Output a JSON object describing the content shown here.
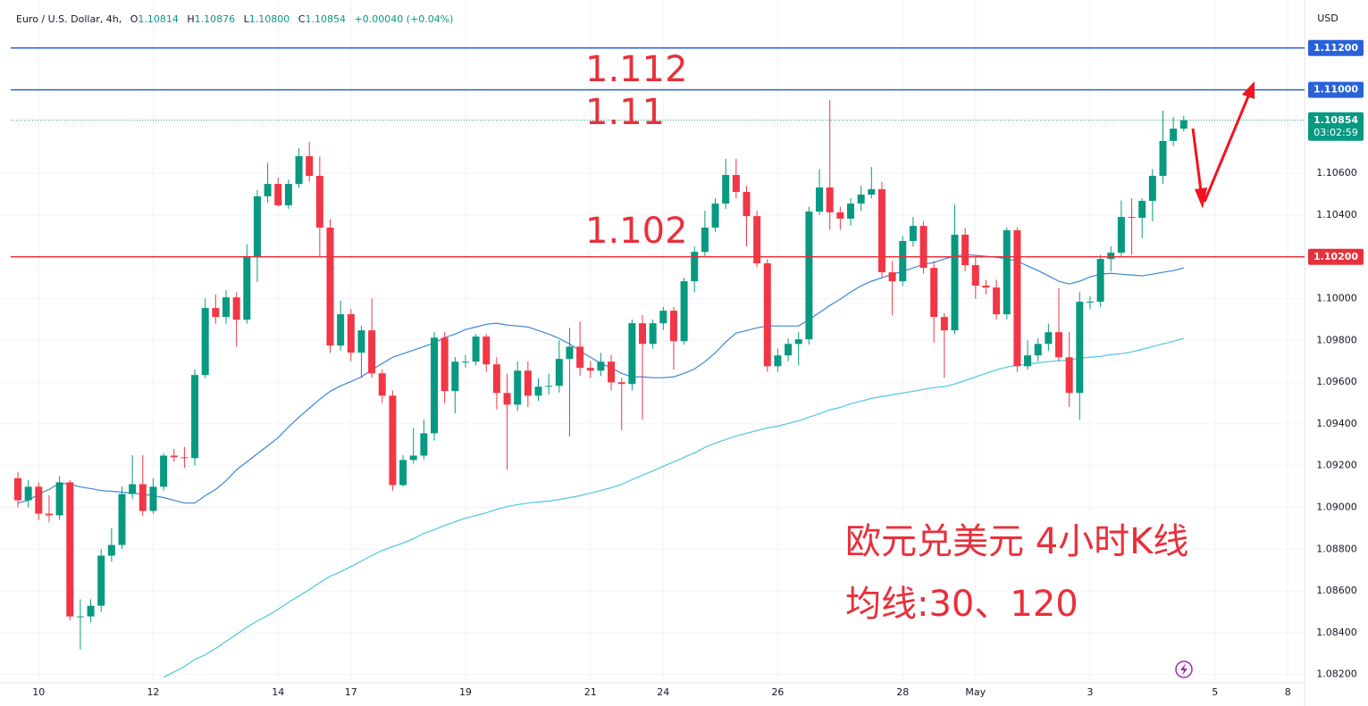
{
  "chart_data": {
    "type": "candlestick",
    "title": "Euro / U.S. Dollar, 4h,",
    "ohlc_header": {
      "open_key": "O",
      "open": "1.10814",
      "high_key": "H",
      "high": "1.10876",
      "low_key": "L",
      "low": "1.10800",
      "close_key": "C",
      "close": "1.10854",
      "change": "+0.00040 (+0.04%)"
    },
    "y_axis_label": "USD",
    "annotations": {
      "level_top": "1.112",
      "level_mid": "1.11",
      "level_low": "1.102",
      "caption_1": "欧元兑美元 4小时K线",
      "caption_2": "均线:30、120"
    },
    "up_color": "#089981",
    "down_color": "#f23645",
    "ylim": [
      1.0816,
      1.1143
    ],
    "yticks": [
      {
        "value": 1.082,
        "label": "1.08200"
      },
      {
        "value": 1.084,
        "label": "1.08400"
      },
      {
        "value": 1.086,
        "label": "1.08600"
      },
      {
        "value": 1.088,
        "label": "1.08800"
      },
      {
        "value": 1.09,
        "label": "1.09000"
      },
      {
        "value": 1.092,
        "label": "1.09200"
      },
      {
        "value": 1.094,
        "label": "1.09400"
      },
      {
        "value": 1.096,
        "label": "1.09600"
      },
      {
        "value": 1.098,
        "label": "1.09800"
      },
      {
        "value": 1.1,
        "label": "1.10000"
      },
      {
        "value": 1.104,
        "label": "1.10400"
      },
      {
        "value": 1.106,
        "label": "1.10600"
      }
    ],
    "grid": true,
    "hlines": [
      {
        "value": 1.112,
        "label": "1.11200",
        "color": "#2962d8"
      },
      {
        "value": 1.11,
        "label": "1.11000",
        "color": "#2962d8"
      },
      {
        "value": 1.102,
        "label": "1.10200",
        "color": "#e8303b"
      }
    ],
    "last_price": {
      "value": 1.10854,
      "label": "1.10854",
      "countdown": "03:02:59",
      "color": "#089981"
    },
    "categories": [
      null,
      null,
      "10",
      null,
      null,
      null,
      null,
      null,
      null,
      null,
      null,
      null,
      null,
      "12",
      null,
      null,
      null,
      null,
      null,
      null,
      null,
      null,
      null,
      null,
      null,
      "14",
      null,
      null,
      null,
      null,
      null,
      null,
      "17",
      null,
      null,
      null,
      null,
      null,
      null,
      null,
      null,
      null,
      null,
      "19",
      null,
      null,
      null,
      null,
      null,
      null,
      null,
      null,
      null,
      null,
      null,
      "21",
      null,
      null,
      null,
      null,
      null,
      null,
      "24",
      null,
      null,
      null,
      null,
      null,
      null,
      null,
      null,
      null,
      null,
      "26",
      null,
      null,
      null,
      null,
      null,
      null,
      null,
      null,
      null,
      null,
      null,
      "28",
      null,
      null,
      null,
      null,
      null,
      null,
      "May",
      null,
      null,
      null,
      null,
      null,
      null,
      null,
      null,
      null,
      null,
      "3",
      null,
      null,
      null,
      null,
      null,
      null,
      null,
      null,
      null,
      null,
      null,
      "5",
      null,
      null,
      null,
      null,
      null,
      null,
      "8"
    ],
    "open": [
      1.0914,
      1.09034,
      1.09099,
      1.0897,
      1.08962,
      1.0912,
      1.08478,
      1.08478,
      1.08529,
      1.08769,
      1.0882,
      1.09064,
      1.09111,
      1.08983,
      1.09099,
      1.09248,
      1.0924,
      1.09236,
      1.09634,
      1.09955,
      1.09912,
      1.10006,
      1.09899,
      1.10199,
      1.1049,
      1.10549,
      1.10447,
      1.10549,
      1.10682,
      1.10588,
      1.1034,
      1.09775,
      1.09925,
      1.09741,
      1.09848,
      1.09642,
      1.09535,
      1.09107,
      1.09227,
      1.09248,
      1.09355,
      1.09813,
      1.09557,
      1.09698,
      1.09698,
      1.09818,
      1.09685,
      1.09548,
      1.09492,
      1.09655,
      1.09535,
      1.09578,
      1.09582,
      1.09711,
      1.0977,
      1.09668,
      1.09655,
      1.09698,
      1.09599,
      1.09591,
      1.09882,
      1.09783,
      1.09882,
      1.09942,
      1.09796,
      1.10083,
      1.10224,
      1.1034,
      1.10455,
      1.10592,
      1.10511,
      1.10395,
      1.10169,
      1.09676,
      1.09728,
      1.09783,
      1.09805,
      1.10417,
      1.10532,
      1.10413,
      1.10383,
      1.10455,
      1.10498,
      1.10524,
      1.10126,
      1.10083,
      1.10276,
      1.10348,
      1.10147,
      1.09912,
      1.09848,
      1.10306,
      1.1016,
      1.10062,
      1.10053,
      1.09925,
      1.10327,
      1.09676,
      1.09728,
      1.09783,
      1.09839,
      1.09719,
      1.09548,
      1.09985,
      1.09985,
      1.1019,
      1.1022,
      1.10391,
      1.10387,
      1.10468,
      1.10588,
      1.10755,
      1.10814,
      null,
      null,
      null,
      null,
      null,
      null,
      null,
      null,
      null,
      null
    ],
    "high": [
      1.0917,
      1.0913,
      1.0912,
      1.0906,
      1.0915,
      1.0913,
      1.0856,
      1.0856,
      1.088,
      1.089,
      1.091,
      1.0925,
      1.0925,
      1.0914,
      1.0926,
      1.0928,
      1.0929,
      1.0966,
      1.1,
      1.1002,
      1.1004,
      1.1003,
      1.1026,
      1.1052,
      1.1065,
      1.1058,
      1.1057,
      1.1072,
      1.1075,
      1.1068,
      1.1038,
      1.0999,
      1.0995,
      1.0987,
      1.1,
      1.0966,
      1.0956,
      1.0925,
      1.0938,
      1.0942,
      1.0984,
      1.0984,
      1.0972,
      1.0973,
      1.0983,
      1.0983,
      1.0972,
      1.0964,
      1.097,
      1.097,
      1.0962,
      1.0964,
      1.098,
      1.0986,
      1.0989,
      1.097,
      1.0974,
      1.0973,
      1.0962,
      1.099,
      1.0992,
      1.099,
      1.0996,
      1.0996,
      1.101,
      1.1025,
      1.1042,
      1.1048,
      1.1067,
      1.1067,
      1.1054,
      1.1042,
      1.1019,
      1.0976,
      1.0981,
      1.0984,
      1.1044,
      1.1062,
      1.1095,
      1.1044,
      1.1048,
      1.1054,
      1.1063,
      1.1056,
      1.1018,
      1.103,
      1.1039,
      1.1037,
      1.1018,
      1.0993,
      1.1045,
      1.1034,
      1.102,
      1.1009,
      1.1009,
      1.1034,
      1.1034,
      1.098,
      1.0981,
      1.0988,
      1.1005,
      1.0984,
      1.1003,
      1.1001,
      1.1021,
      1.1025,
      1.1047,
      1.1048,
      1.1048,
      1.1062,
      1.109,
      1.1087,
      1.10876,
      null,
      null,
      null,
      null,
      null,
      null,
      null,
      null,
      null,
      null
    ],
    "low": [
      1.09,
      1.09,
      1.0894,
      1.0893,
      1.0894,
      1.0846,
      1.0832,
      1.0845,
      1.085,
      1.0874,
      1.088,
      1.0904,
      1.0896,
      1.0897,
      1.0908,
      1.0922,
      1.0919,
      1.092,
      1.0962,
      1.0988,
      1.0988,
      1.0977,
      1.0988,
      1.1008,
      1.1046,
      1.1044,
      1.1043,
      1.1053,
      1.1056,
      1.102,
      1.0974,
      1.0975,
      1.097,
      1.0962,
      1.0962,
      1.095,
      1.0908,
      1.091,
      1.0921,
      1.0923,
      1.0932,
      1.095,
      1.0945,
      1.0967,
      1.0968,
      1.0965,
      1.0947,
      1.0918,
      1.0946,
      1.0948,
      1.0951,
      1.0954,
      1.0955,
      1.0934,
      1.0963,
      1.0962,
      1.0963,
      1.0956,
      1.0937,
      1.0956,
      1.0942,
      1.0976,
      1.0985,
      1.0966,
      1.0978,
      1.1003,
      1.102,
      1.1032,
      1.1043,
      1.1048,
      1.1025,
      1.1015,
      1.0965,
      1.0965,
      1.097,
      1.0968,
      1.0978,
      1.104,
      1.1033,
      1.1033,
      1.1035,
      1.1042,
      1.1048,
      1.101,
      1.0992,
      1.1006,
      1.1025,
      1.1012,
      1.0979,
      1.0962,
      1.0983,
      1.1013,
      1.1,
      1.1002,
      1.099,
      1.099,
      1.0965,
      1.0966,
      1.097,
      1.0975,
      1.097,
      1.0948,
      1.0942,
      1.0995,
      1.0996,
      1.1013,
      1.102,
      1.1021,
      1.1029,
      1.1037,
      1.1055,
      1.1073,
      1.108,
      null,
      null,
      null,
      null,
      null,
      null,
      null,
      null,
      null,
      null
    ],
    "close": [
      1.09034,
      1.09099,
      1.0897,
      1.08962,
      1.0912,
      1.08478,
      1.08478,
      1.08529,
      1.08769,
      1.0882,
      1.09064,
      1.09111,
      1.08983,
      1.09099,
      1.09248,
      1.0924,
      1.09236,
      1.09634,
      1.09955,
      1.09912,
      1.10006,
      1.09899,
      1.10199,
      1.1049,
      1.10549,
      1.10447,
      1.10549,
      1.10682,
      1.10588,
      1.1034,
      1.09775,
      1.09925,
      1.09741,
      1.09848,
      1.09642,
      1.09535,
      1.09107,
      1.09227,
      1.09248,
      1.09355,
      1.09813,
      1.09557,
      1.09698,
      1.09698,
      1.09818,
      1.09685,
      1.09548,
      1.09492,
      1.09655,
      1.09535,
      1.09578,
      1.09582,
      1.09711,
      1.0977,
      1.09668,
      1.09655,
      1.09698,
      1.09599,
      1.09591,
      1.09882,
      1.09783,
      1.09882,
      1.09942,
      1.09796,
      1.10083,
      1.10224,
      1.1034,
      1.10455,
      1.10592,
      1.10511,
      1.10395,
      1.10169,
      1.09676,
      1.09728,
      1.09783,
      1.09805,
      1.10417,
      1.10532,
      1.10413,
      1.10383,
      1.10455,
      1.10498,
      1.10524,
      1.10126,
      1.10083,
      1.10276,
      1.10348,
      1.10147,
      1.09912,
      1.09848,
      1.10306,
      1.1016,
      1.10062,
      1.10053,
      1.09925,
      1.10327,
      1.09676,
      1.09728,
      1.09783,
      1.09839,
      1.09719,
      1.09548,
      1.09985,
      1.09985,
      1.1019,
      1.1022,
      1.10391,
      1.10387,
      1.10468,
      1.10588,
      1.10755,
      1.10814,
      1.10854,
      null,
      null,
      null,
      null,
      null,
      null,
      null,
      null,
      null,
      null
    ],
    "series": [
      {
        "color": "#3d86d4",
        "values": [
          1.09021,
          1.09034,
          1.09064,
          1.09086,
          1.09116,
          1.09111,
          1.09098,
          1.0909,
          1.09081,
          1.09077,
          1.09073,
          1.09068,
          1.09064,
          1.09056,
          1.09047,
          1.09034,
          1.09021,
          1.09021,
          1.09056,
          1.09086,
          1.09128,
          1.0918,
          1.09218,
          1.09257,
          1.09295,
          1.09334,
          1.09385,
          1.09432,
          1.09475,
          1.09518,
          1.09556,
          1.09582,
          1.09603,
          1.09625,
          1.09659,
          1.09689,
          1.09719,
          1.09736,
          1.09753,
          1.0977,
          1.09788,
          1.09813,
          1.0983,
          1.09852,
          1.09864,
          1.09877,
          1.09882,
          1.09873,
          1.09869,
          1.09864,
          1.09847,
          1.0983,
          1.09809,
          1.09783,
          1.09749,
          1.09719,
          1.09689,
          1.09668,
          1.09642,
          1.09625,
          1.09625,
          1.09621,
          1.09621,
          1.09625,
          1.09642,
          1.09663,
          1.09698,
          1.0974,
          1.09792,
          1.09835,
          1.09847,
          1.0986,
          1.09869,
          1.09869,
          1.09869,
          1.09869,
          1.09899,
          1.09933,
          1.09967,
          1.09997,
          1.10031,
          1.10061,
          1.10083,
          1.101,
          1.10117,
          1.1013,
          1.10147,
          1.10164,
          1.10173,
          1.1019,
          1.10203,
          1.10211,
          1.10207,
          1.10203,
          1.10198,
          1.1019,
          1.10181,
          1.10156,
          1.10134,
          1.10109,
          1.10083,
          1.1007,
          1.10083,
          1.10104,
          1.10117,
          1.10121,
          1.10117,
          1.10113,
          1.10109,
          1.10117,
          1.10126,
          1.10134,
          1.10147,
          null,
          null,
          null,
          null,
          null,
          null,
          null,
          null,
          null,
          null
        ]
      },
      {
        "color": "#4cc6e4",
        "values": [
          null,
          null,
          null,
          null,
          null,
          null,
          null,
          null,
          null,
          null,
          null,
          null,
          null,
          null,
          1.08187,
          1.08212,
          1.08238,
          1.08272,
          1.08294,
          1.08324,
          1.08358,
          1.08392,
          1.08426,
          1.08456,
          1.08482,
          1.08512,
          1.08546,
          1.08576,
          1.08606,
          1.0864,
          1.0867,
          1.08692,
          1.08717,
          1.08743,
          1.08769,
          1.08794,
          1.08812,
          1.08829,
          1.0885,
          1.08876,
          1.08893,
          1.08914,
          1.08931,
          1.08949,
          1.08961,
          1.08974,
          1.08991,
          1.09004,
          1.09013,
          1.09021,
          1.09026,
          1.0903,
          1.09038,
          1.09047,
          1.09056,
          1.09068,
          1.09081,
          1.09094,
          1.09111,
          1.09133,
          1.09154,
          1.09175,
          1.09197,
          1.09218,
          1.0924,
          1.09261,
          1.09287,
          1.09308,
          1.09325,
          1.09342,
          1.09355,
          1.09368,
          1.09381,
          1.09389,
          1.09402,
          1.09415,
          1.09432,
          1.09449,
          1.09467,
          1.09479,
          1.09496,
          1.09509,
          1.09522,
          1.09531,
          1.09539,
          1.09548,
          1.09556,
          1.09565,
          1.09574,
          1.09578,
          1.09591,
          1.09608,
          1.09625,
          1.09642,
          1.09659,
          1.09672,
          1.09681,
          1.09685,
          1.09693,
          1.09698,
          1.09702,
          1.09706,
          1.09715,
          1.09719,
          1.09723,
          1.09732,
          1.09736,
          1.09745,
          1.09757,
          1.0977,
          1.09783,
          1.09796,
          1.09809,
          null,
          null,
          null,
          null,
          null,
          null,
          null,
          null,
          null,
          null
        ]
      }
    ]
  }
}
